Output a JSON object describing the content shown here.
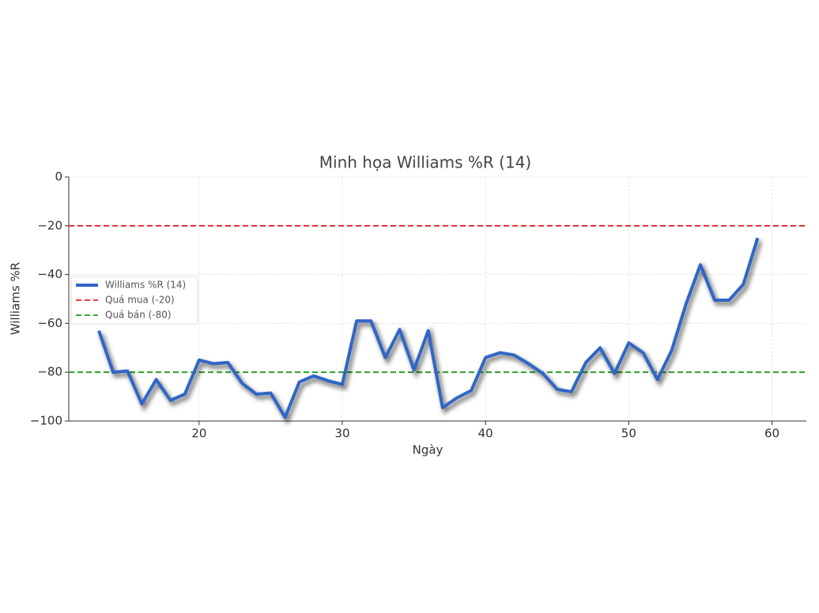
{
  "chart_data": {
    "type": "line",
    "title": "Minh họa Williams %R (14)",
    "x_label": "Ngày",
    "y_label": "Williams %R",
    "x": [
      13,
      14,
      15,
      16,
      17,
      18,
      19,
      20,
      21,
      22,
      23,
      24,
      25,
      26,
      27,
      28,
      29,
      30,
      31,
      32,
      33,
      34,
      35,
      36,
      37,
      38,
      39,
      40,
      41,
      42,
      43,
      44,
      45,
      46,
      47,
      48,
      49,
      50,
      51,
      52,
      53,
      54,
      55,
      56,
      57,
      58,
      59
    ],
    "series": [
      {
        "name": "Williams %R (14)",
        "color": "#2f66c8",
        "values": [
          -63,
          -80,
          -79.5,
          -93,
          -83,
          -91.5,
          -89,
          -75,
          -76.5,
          -76,
          -84.5,
          -89,
          -88.5,
          -98.5,
          -84,
          -81.5,
          -83.5,
          -85,
          -59,
          -59,
          -74,
          -62.5,
          -79,
          -63,
          -94.5,
          -90.5,
          -87.5,
          -74,
          -72,
          -73,
          -76.5,
          -80.5,
          -87,
          -88,
          -76,
          -70,
          -80.5,
          -68,
          -72,
          -83,
          -71,
          -52,
          -36,
          -50.5,
          -50.5,
          -44,
          -25
        ]
      }
    ],
    "reference_lines": [
      {
        "name": "Quá mua (-20)",
        "value": -20,
        "color": "#e02020"
      },
      {
        "name": "Quá bán (-80)",
        "value": -80,
        "color": "#1a9a1a"
      }
    ],
    "xlim": [
      10.9,
      62.4
    ],
    "ylim": [
      -100,
      0
    ],
    "xticks": [
      20,
      30,
      40,
      50,
      60
    ],
    "yticks": [
      {
        "value": -100,
        "label": "−100"
      },
      {
        "value": -80,
        "label": "−80"
      },
      {
        "value": -60,
        "label": "−60"
      },
      {
        "value": -40,
        "label": "−40"
      },
      {
        "value": -20,
        "label": "−20"
      },
      0
    ],
    "grid": true,
    "legend_position": "left"
  }
}
